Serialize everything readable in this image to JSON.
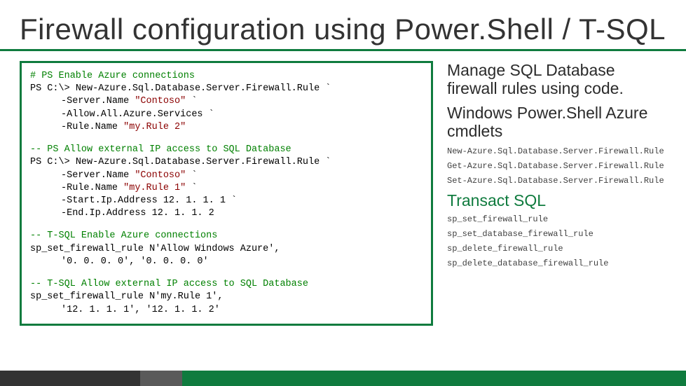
{
  "title": "Firewall configuration using Power.Shell / T-SQL",
  "code": {
    "block1": {
      "comment": "# PS Enable Azure connections",
      "l1a": "PS C:\\> ",
      "l1b": "New-Azure.Sql.Database.Server.Firewall.Rule `",
      "l2a": "-Server.Name ",
      "l2b": "\"Contoso\"",
      "l2c": " `",
      "l3": "-Allow.All.Azure.Services `",
      "l4a": "-Rule.Name ",
      "l4b": "\"my.Rule 2\""
    },
    "block2": {
      "comment": "-- PS Allow external IP access to SQL Database",
      "l1a": "PS C:\\> ",
      "l1b": "New-Azure.Sql.Database.Server.Firewall.Rule `",
      "l2a": "-Server.Name ",
      "l2b": "\"Contoso\"",
      "l2c": " `",
      "l3a": "-Rule.Name ",
      "l3b": "\"my.Rule 1\"",
      "l3c": " `",
      "l4": "-Start.Ip.Address 12. 1. 1. 1 `",
      "l5": "-End.Ip.Address 12. 1. 1. 2"
    },
    "block3": {
      "comment": "-- T-SQL Enable Azure connections",
      "l1": "sp_set_firewall_rule N'Allow Windows Azure',",
      "l2": "'0. 0. 0. 0', '0. 0. 0. 0'"
    },
    "block4": {
      "comment": "-- T-SQL Allow external IP access to SQL Database",
      "l1": "sp_set_firewall_rule N'my.Rule 1',",
      "l2": "'12. 1. 1. 1', '12. 1. 1. 2'"
    }
  },
  "side": {
    "h_manage": "Manage SQL Database firewall rules using code.",
    "h_cmdlets": "Windows Power.Shell Azure cmdlets",
    "cmdlets": [
      "New-Azure.Sql.Database.Server.Firewall.Rule",
      "Get-Azure.Sql.Database.Server.Firewall.Rule",
      "Set-Azure.Sql.Database.Server.Firewall.Rule"
    ],
    "h_tsql": "Transact SQL",
    "procs": [
      "sp_set_firewall_rule",
      "sp_set_database_firewall_rule",
      "sp_delete_firewall_rule",
      "sp_delete_database_firewall_rule"
    ]
  },
  "colors": {
    "accent": "#0f7b3e",
    "comment": "#008000",
    "string": "#8b0000",
    "text": "#333333",
    "mono": "#404040",
    "footer_dark": "#333333",
    "footer_mid": "#5a5a5a",
    "bg": "#ffffff"
  }
}
